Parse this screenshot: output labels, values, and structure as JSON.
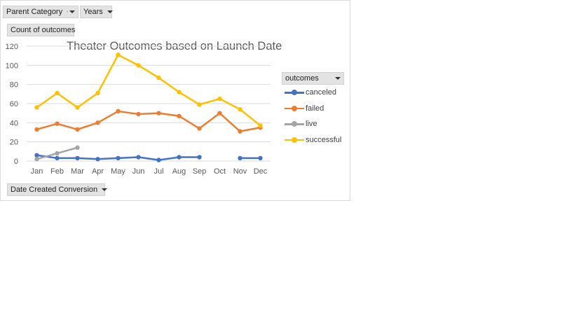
{
  "filters": {
    "parent_category": "Parent Category",
    "years": "Years",
    "values_field": "Count of outcomes",
    "axis_field": "Date Created Conversion",
    "legend_field": "outcomes"
  },
  "chart_data": {
    "type": "line",
    "title": "Theater Outcomes based on Launch Date",
    "xlabel": "",
    "ylabel": "",
    "categories": [
      "Jan",
      "Feb",
      "Mar",
      "Apr",
      "May",
      "Jun",
      "Jul",
      "Aug",
      "Sep",
      "Oct",
      "Nov",
      "Dec"
    ],
    "ylim": [
      0,
      120
    ],
    "yticks": [
      0,
      20,
      40,
      60,
      80,
      100,
      120
    ],
    "grid": true,
    "legend_position": "right",
    "series": [
      {
        "name": "canceled",
        "color": "#4472c4",
        "values": [
          6,
          3,
          3,
          2,
          3,
          4,
          1,
          4,
          4,
          null,
          3,
          3
        ]
      },
      {
        "name": "failed",
        "color": "#ed7d31",
        "values": [
          33,
          39,
          33,
          40,
          52,
          49,
          50,
          47,
          34,
          50,
          31,
          35
        ]
      },
      {
        "name": "live",
        "color": "#a5a5a5",
        "values": [
          2,
          8,
          14,
          null,
          null,
          null,
          null,
          null,
          null,
          null,
          null,
          null
        ]
      },
      {
        "name": "successful",
        "color": "#ffc000",
        "values": [
          56,
          71,
          56,
          71,
          111,
          100,
          87,
          72,
          59,
          65,
          54,
          37
        ]
      }
    ]
  }
}
